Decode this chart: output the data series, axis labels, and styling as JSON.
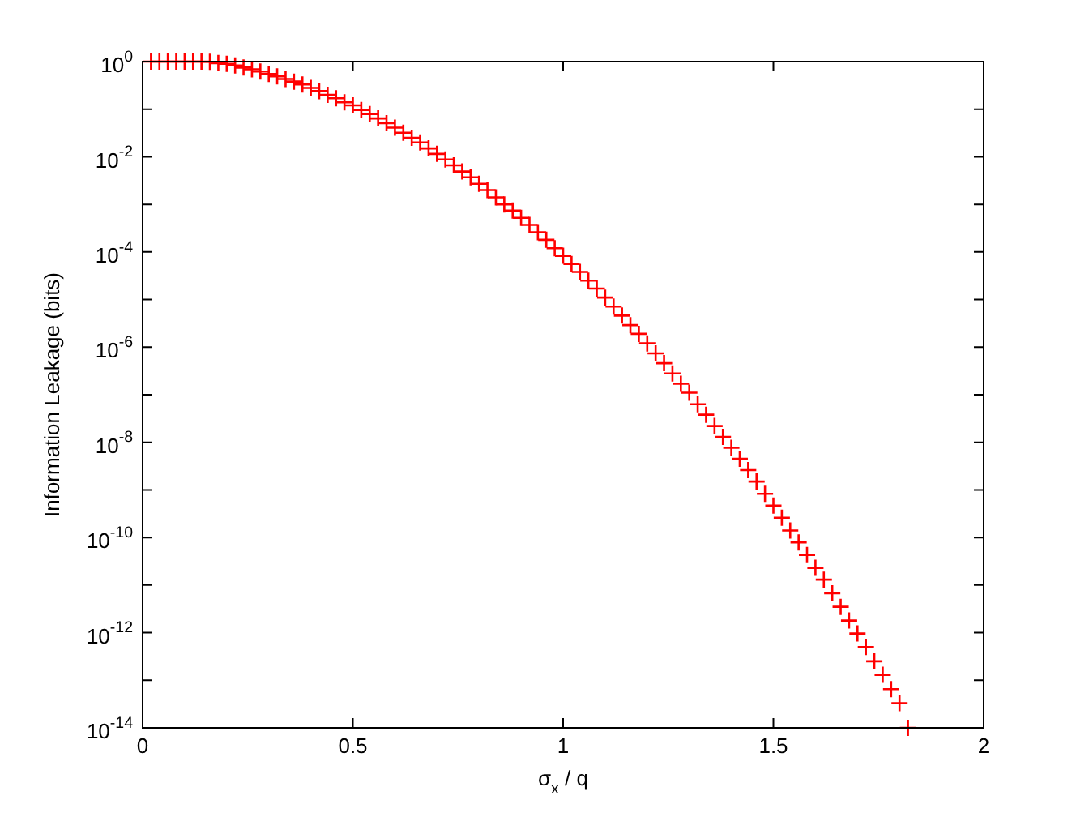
{
  "chart_data": {
    "type": "scatter",
    "xlabel": "σ$_{x}$ / q",
    "ylabel": "Information Leakage (bits)",
    "x": [
      0.02,
      0.04,
      0.06,
      0.08,
      0.1,
      0.12,
      0.14,
      0.16,
      0.18,
      0.2,
      0.22,
      0.24,
      0.26,
      0.28,
      0.3,
      0.32,
      0.34,
      0.36,
      0.38,
      0.4,
      0.42,
      0.44,
      0.46,
      0.48,
      0.5,
      0.52,
      0.54,
      0.56,
      0.58,
      0.6,
      0.62,
      0.64,
      0.66,
      0.68,
      0.7,
      0.72,
      0.74,
      0.76,
      0.78,
      0.8,
      0.82,
      0.84,
      0.86,
      0.88,
      0.9,
      0.92,
      0.94,
      0.96,
      0.98,
      1.0,
      1.02,
      1.04,
      1.06,
      1.08,
      1.1,
      1.12,
      1.14,
      1.16,
      1.18,
      1.2,
      1.22,
      1.24,
      1.26,
      1.28,
      1.3,
      1.32,
      1.34,
      1.36,
      1.38,
      1.4,
      1.42,
      1.44,
      1.46,
      1.48,
      1.5,
      1.52,
      1.54,
      1.56,
      1.58,
      1.6,
      1.62,
      1.64,
      1.66,
      1.68,
      1.7,
      1.72,
      1.74,
      1.76,
      1.78,
      1.8,
      1.82
    ],
    "series": [
      {
        "color": "#ff0000",
        "values": [
          1,
          1,
          1,
          1,
          1,
          1,
          1,
          0.99,
          0.93,
          0.9,
          0.83,
          0.75,
          0.69,
          0.62,
          0.55,
          0.49,
          0.43,
          0.38,
          0.33,
          0.28,
          0.24,
          0.2,
          0.17,
          0.14,
          0.12,
          0.096,
          0.079,
          0.064,
          0.051,
          0.041,
          0.032,
          0.025,
          0.02,
          0.015,
          0.0115,
          0.0088,
          0.0066,
          0.0049,
          0.0037,
          0.0027,
          0.002,
          0.0014,
          0.001,
          0.00074,
          0.00052,
          0.00037,
          0.00026,
          0.00018,
          0.00012,
          8.3e-05,
          5.6e-05,
          3.8e-05,
          2.5e-05,
          1.7e-05,
          1.1e-05,
          7.1e-06,
          4.6e-06,
          2.9e-06,
          1.9e-06,
          1.2e-06,
          7.4e-07,
          4.6e-07,
          2.8e-07,
          1.7e-07,
          1.1e-07,
          6.3e-08,
          3.8e-08,
          2.2e-08,
          1.3e-08,
          7.7e-09,
          4.5e-09,
          2.6e-09,
          1.5e-09,
          8.3e-10,
          4.7e-10,
          2.6e-10,
          1.4e-10,
          7.9e-11,
          4.3e-11,
          2.3e-11,
          1.3e-11,
          6.7e-12,
          3.5e-12,
          1.8e-12,
          9.6e-13,
          5e-13,
          2.5e-13,
          1.3e-13,
          6.5e-14,
          3.3e-14,
          1e-14
        ]
      }
    ],
    "xlim": [
      0,
      2
    ],
    "xticks": [
      0,
      0.5,
      1,
      1.5,
      2
    ],
    "ylim": [
      1e-14,
      1
    ],
    "log": "y",
    "yticks": [
      {
        "value": 1,
        "label": "10$^{0}$"
      },
      {
        "value": 0.1,
        "label": null
      },
      {
        "value": 0.01,
        "label": "10$^{-2}$"
      },
      {
        "value": 0.001,
        "label": null
      },
      {
        "value": 0.0001,
        "label": "10$^{-4}$"
      },
      {
        "value": 1e-05,
        "label": null
      },
      {
        "value": 1e-06,
        "label": "10$^{-6}$"
      },
      {
        "value": 1e-07,
        "label": null
      },
      {
        "value": 1e-08,
        "label": "10$^{-8}$"
      },
      {
        "value": 1e-09,
        "label": null
      },
      {
        "value": 1e-10,
        "label": "10$^{-10}$"
      },
      {
        "value": 1e-11,
        "label": null
      },
      {
        "value": 1e-12,
        "label": "10$^{-12}$"
      },
      {
        "value": 1e-13,
        "label": null
      },
      {
        "value": 1e-14,
        "label": "10$^{-14}$"
      }
    ],
    "marker": "cross",
    "grid": false,
    "legend": false
  }
}
